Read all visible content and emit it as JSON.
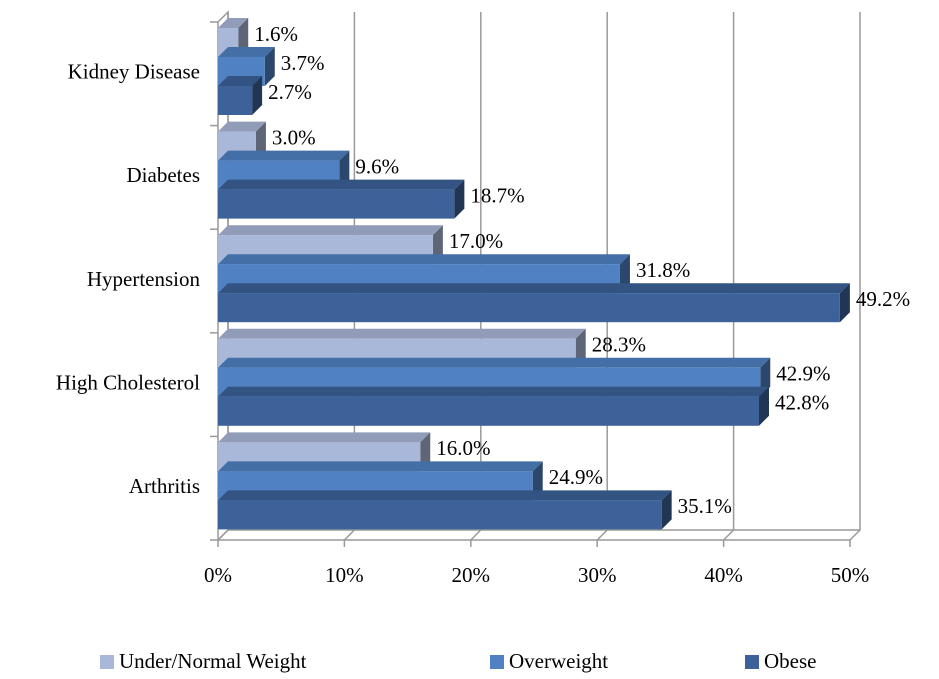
{
  "chart_data": {
    "type": "bar",
    "orientation": "horizontal",
    "three_d": true,
    "categories": [
      "Kidney Disease",
      "Diabetes",
      "Hypertension",
      "High Cholesterol",
      "Arthritis"
    ],
    "series": [
      {
        "name": "Under/Normal Weight",
        "color": "#a9b8d9",
        "values": [
          1.6,
          3.0,
          17.0,
          28.3,
          16.0
        ],
        "value_labels": [
          "1.6%",
          "3.0%",
          "17.0%",
          "28.3%",
          "16.0%"
        ]
      },
      {
        "name": "Overweight",
        "color": "#4f81c3",
        "values": [
          3.7,
          9.6,
          31.8,
          42.9,
          24.9
        ],
        "value_labels": [
          "3.7%",
          "9.6%",
          "31.8%",
          "42.9%",
          "24.9%"
        ]
      },
      {
        "name": "Obese",
        "color": "#3c6299",
        "values": [
          2.7,
          18.7,
          49.2,
          42.8,
          35.1
        ],
        "value_labels": [
          "2.7%",
          "18.7%",
          "49.2%",
          "42.8%",
          "35.1%"
        ]
      }
    ],
    "xlim": [
      0,
      50
    ],
    "xticks": [
      {
        "value": 0,
        "label": "0%"
      },
      {
        "value": 10,
        "label": "10%"
      },
      {
        "value": 20,
        "label": "20%"
      },
      {
        "value": 30,
        "label": "30%"
      },
      {
        "value": 40,
        "label": "40%"
      },
      {
        "value": 50,
        "label": "50%"
      }
    ],
    "grid": true,
    "legend": "bottom"
  }
}
